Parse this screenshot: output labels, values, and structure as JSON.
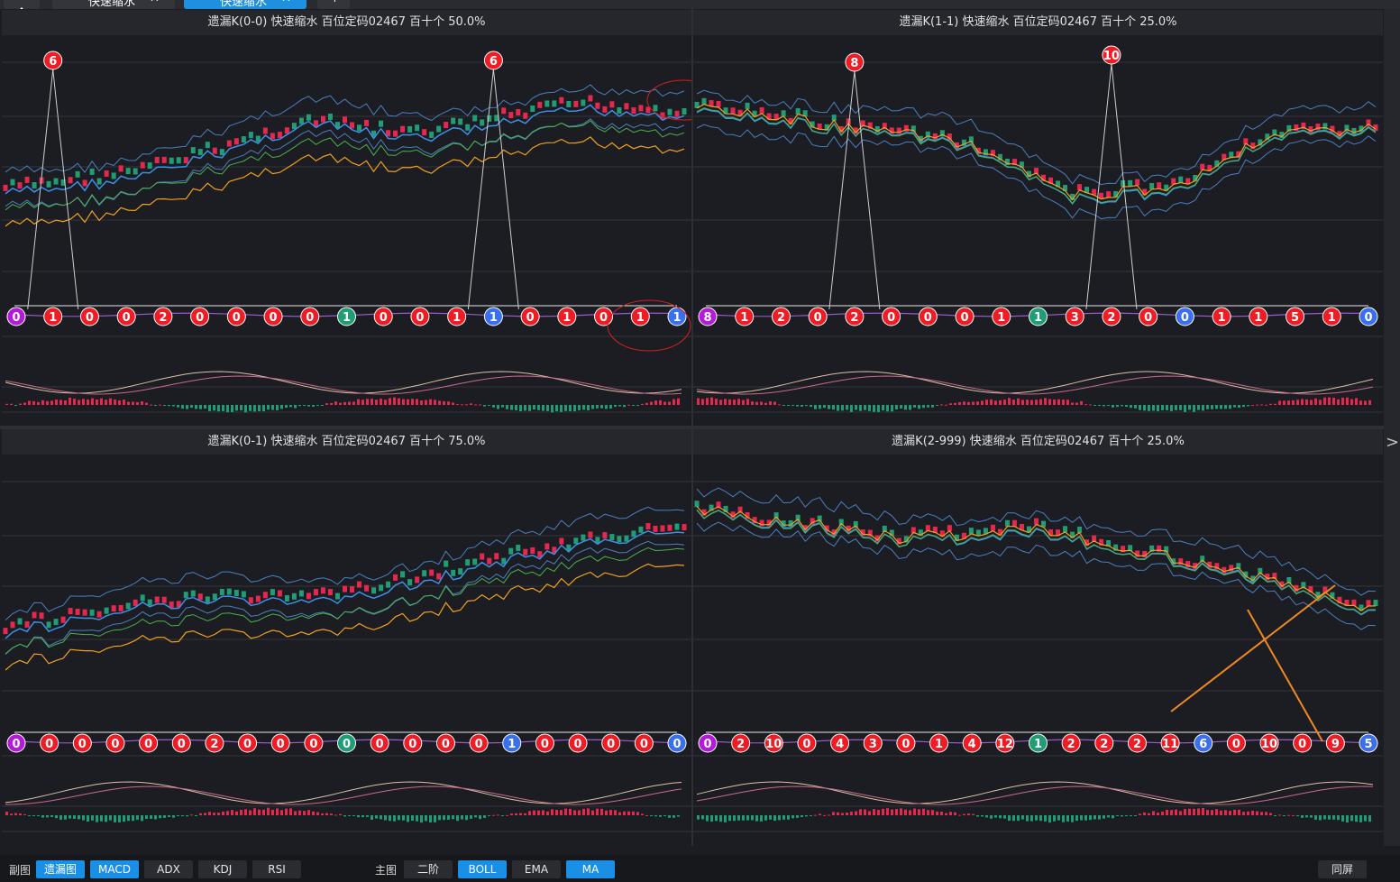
{
  "tabs": [
    {
      "label": "快速缩水"
    },
    {
      "label": "快速缩水"
    }
  ],
  "tab_close": "✕",
  "tab_add": "+",
  "panels": [
    {
      "title": "遗漏K(0-0)  快速缩水  百位定码02467  百十个  50.0%",
      "markers": [
        [
          "0",
          "p"
        ],
        [
          "1",
          "r"
        ],
        [
          "0",
          "r"
        ],
        [
          "0",
          "r"
        ],
        [
          "2",
          "r"
        ],
        [
          "0",
          "r"
        ],
        [
          "0",
          "r"
        ],
        [
          "0",
          "r"
        ],
        [
          "0",
          "r"
        ],
        [
          "1",
          "g"
        ],
        [
          "0",
          "r"
        ],
        [
          "0",
          "r"
        ],
        [
          "1",
          "r"
        ],
        [
          "1",
          "b"
        ],
        [
          "0",
          "r"
        ],
        [
          "1",
          "r"
        ],
        [
          "0",
          "r"
        ],
        [
          "1",
          "r"
        ],
        [
          "1",
          "b"
        ]
      ],
      "peaks": [
        [
          "6",
          1
        ],
        [
          "6",
          13
        ]
      ]
    },
    {
      "title": "遗漏K(1-1)  快速缩水  百位定码02467  百十个  25.0%",
      "markers": [
        [
          "8",
          "p"
        ],
        [
          "1",
          "r"
        ],
        [
          "2",
          "r"
        ],
        [
          "0",
          "r"
        ],
        [
          "2",
          "r"
        ],
        [
          "0",
          "r"
        ],
        [
          "0",
          "r"
        ],
        [
          "0",
          "r"
        ],
        [
          "1",
          "r"
        ],
        [
          "1",
          "g"
        ],
        [
          "3",
          "r"
        ],
        [
          "2",
          "r"
        ],
        [
          "0",
          "r"
        ],
        [
          "0",
          "b"
        ],
        [
          "1",
          "r"
        ],
        [
          "1",
          "r"
        ],
        [
          "5",
          "r"
        ],
        [
          "1",
          "r"
        ],
        [
          "0",
          "b"
        ]
      ],
      "peaks": [
        [
          "8",
          4
        ],
        [
          "10",
          11
        ]
      ]
    },
    {
      "title": "遗漏K(0-1)  快速缩水  百位定码02467  百十个  75.0%",
      "markers": [
        [
          "0",
          "p"
        ],
        [
          "0",
          "r"
        ],
        [
          "0",
          "r"
        ],
        [
          "0",
          "r"
        ],
        [
          "0",
          "r"
        ],
        [
          "0",
          "r"
        ],
        [
          "2",
          "r"
        ],
        [
          "0",
          "r"
        ],
        [
          "0",
          "r"
        ],
        [
          "0",
          "r"
        ],
        [
          "0",
          "g"
        ],
        [
          "0",
          "r"
        ],
        [
          "0",
          "r"
        ],
        [
          "0",
          "r"
        ],
        [
          "0",
          "r"
        ],
        [
          "1",
          "b"
        ],
        [
          "0",
          "r"
        ],
        [
          "0",
          "r"
        ],
        [
          "0",
          "r"
        ],
        [
          "0",
          "r"
        ],
        [
          "0",
          "b"
        ]
      ],
      "peaks": []
    },
    {
      "title": "遗漏K(2-999)  快速缩水  百位定码02467  百十个  25.0%",
      "markers": [
        [
          "0",
          "p"
        ],
        [
          "2",
          "r"
        ],
        [
          "10",
          "r"
        ],
        [
          "0",
          "r"
        ],
        [
          "4",
          "r"
        ],
        [
          "3",
          "r"
        ],
        [
          "0",
          "r"
        ],
        [
          "1",
          "r"
        ],
        [
          "4",
          "r"
        ],
        [
          "12",
          "r"
        ],
        [
          "1",
          "g"
        ],
        [
          "2",
          "r"
        ],
        [
          "2",
          "r"
        ],
        [
          "2",
          "r"
        ],
        [
          "11",
          "r"
        ],
        [
          "6",
          "b"
        ],
        [
          "0",
          "r"
        ],
        [
          "10",
          "r"
        ],
        [
          "0",
          "r"
        ],
        [
          "9",
          "r"
        ],
        [
          "5",
          "b"
        ]
      ],
      "peaks": []
    }
  ],
  "left_labels": {
    "sub": "副图",
    "main": "主图"
  },
  "sub_buttons": [
    {
      "label": "遗漏图",
      "active": true
    },
    {
      "label": "MACD",
      "active": true
    },
    {
      "label": "ADX",
      "active": false
    },
    {
      "label": "KDJ",
      "active": false
    },
    {
      "label": "RSI",
      "active": false
    }
  ],
  "main_buttons": [
    {
      "label": "二阶",
      "active": false
    },
    {
      "label": "BOLL",
      "active": true
    },
    {
      "label": "EMA",
      "active": false
    },
    {
      "label": "MA",
      "active": true
    }
  ],
  "right_button": "同屏",
  "colors": {
    "up": "#e8264e",
    "down": "#1f9d74",
    "blue": "#3d8fe8",
    "green": "#4caf50",
    "orange": "#f0a020",
    "accent": "#1a8fe6"
  }
}
